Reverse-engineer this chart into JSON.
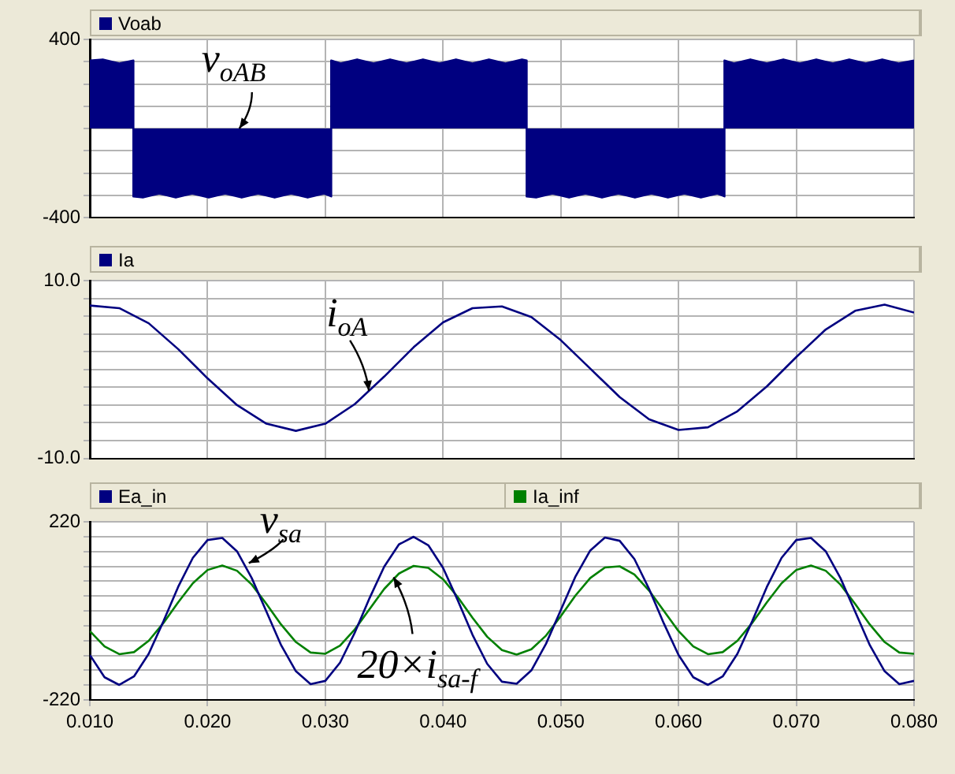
{
  "chart_data": [
    {
      "type": "area",
      "legend": "top left",
      "grid": true,
      "tick_labels": "y",
      "xlim": [
        0.01,
        0.08
      ],
      "ylim": [
        -400,
        400
      ],
      "xticks": [
        {
          "value": 0.01,
          "label": null
        },
        {
          "value": 0.02,
          "label": null
        },
        {
          "value": 0.03,
          "label": null
        },
        {
          "value": 0.04,
          "label": null
        },
        {
          "value": 0.05,
          "label": null
        },
        {
          "value": 0.06,
          "label": null
        },
        {
          "value": 0.07,
          "label": null
        },
        {
          "value": 0.08,
          "label": null
        }
      ],
      "yticks": [
        400,
        {
          "value": 300,
          "label": null
        },
        {
          "value": 200,
          "label": null
        },
        {
          "value": 100,
          "label": null
        },
        {
          "value": 0,
          "label": null
        },
        {
          "value": -100,
          "label": null
        },
        {
          "value": -200,
          "label": null
        },
        {
          "value": -300,
          "label": null
        },
        -400
      ],
      "annotations": [
        {
          "text": "v$_{oAB}$",
          "x": 0.0227,
          "y": 0
        }
      ],
      "series": [
        {
          "name": "Voab",
          "color": "#000080",
          "x": [
            0.01,
            0.0111,
            0.0125,
            0.0137,
            0.0137,
            0.0145,
            0.0159,
            0.0173,
            0.0187,
            0.0201,
            0.0215,
            0.0229,
            0.0243,
            0.0257,
            0.0271,
            0.0285,
            0.0299,
            0.0305,
            0.0305,
            0.0313,
            0.0327,
            0.0341,
            0.0355,
            0.0369,
            0.0383,
            0.0397,
            0.0411,
            0.0425,
            0.0439,
            0.0453,
            0.0467,
            0.0471,
            0.0471,
            0.0479,
            0.0493,
            0.0507,
            0.0521,
            0.0535,
            0.0549,
            0.0563,
            0.0577,
            0.0591,
            0.0605,
            0.0619,
            0.0633,
            0.0639,
            0.0639,
            0.0647,
            0.0661,
            0.0675,
            0.0689,
            0.0703,
            0.0717,
            0.0731,
            0.0745,
            0.0759,
            0.0773,
            0.0787,
            0.08
          ],
          "values": [
            305,
            310,
            292,
            305,
            -305,
            -310,
            -292,
            -310,
            -292,
            -310,
            -292,
            -310,
            -292,
            -310,
            -292,
            -310,
            -292,
            -305,
            305,
            292,
            310,
            292,
            310,
            292,
            310,
            292,
            310,
            292,
            310,
            292,
            310,
            305,
            -305,
            -310,
            -292,
            -310,
            -292,
            -310,
            -292,
            -310,
            -292,
            -310,
            -292,
            -310,
            -292,
            -305,
            305,
            292,
            310,
            292,
            310,
            292,
            310,
            292,
            310,
            292,
            310,
            292,
            305
          ]
        }
      ]
    },
    {
      "type": "line",
      "legend": "top left",
      "grid": true,
      "tick_labels": "y",
      "xlim": [
        0.01,
        0.08
      ],
      "ylim": [
        -10,
        10
      ],
      "xticks": [
        {
          "value": 0.01,
          "label": null
        },
        {
          "value": 0.02,
          "label": null
        },
        {
          "value": 0.03,
          "label": null
        },
        {
          "value": 0.04,
          "label": null
        },
        {
          "value": 0.05,
          "label": null
        },
        {
          "value": 0.06,
          "label": null
        },
        {
          "value": 0.07,
          "label": null
        },
        {
          "value": 0.08,
          "label": null
        }
      ],
      "yticks": [
        {
          "value": 10,
          "label": "10.0"
        },
        {
          "value": 8,
          "label": null
        },
        {
          "value": 6,
          "label": null
        },
        {
          "value": 4,
          "label": null
        },
        {
          "value": 2,
          "label": null
        },
        {
          "value": 0,
          "label": null
        },
        {
          "value": -2,
          "label": null
        },
        {
          "value": -4,
          "label": null
        },
        {
          "value": -6,
          "label": null
        },
        {
          "value": -8,
          "label": null
        },
        {
          "value": -10,
          "label": "-10.0"
        }
      ],
      "annotations": [
        {
          "text": "i$_{oA}$",
          "x": 0.0337,
          "y": -2.4
        }
      ],
      "x": [
        0.01,
        0.0125,
        0.015,
        0.0175,
        0.02,
        0.0225,
        0.025,
        0.0275,
        0.03,
        0.0325,
        0.035,
        0.0375,
        0.04,
        0.0425,
        0.045,
        0.0475,
        0.05,
        0.0525,
        0.055,
        0.0575,
        0.06,
        0.0625,
        0.065,
        0.0675,
        0.07,
        0.0725,
        0.075,
        0.0775,
        0.08
      ],
      "series": [
        {
          "name": "Ia",
          "color": "#000080",
          "values": [
            7.2,
            6.9,
            5.2,
            2.3,
            -1.0,
            -4.0,
            -6.1,
            -6.9,
            -6.1,
            -3.9,
            -0.8,
            2.5,
            5.3,
            6.9,
            7.1,
            5.9,
            3.3,
            0.1,
            -3.1,
            -5.6,
            -6.8,
            -6.5,
            -4.7,
            -1.9,
            1.4,
            4.5,
            6.6,
            7.3,
            6.4
          ]
        }
      ]
    },
    {
      "type": "line",
      "legend": "top left",
      "grid": true,
      "xlim": [
        0.01,
        0.08
      ],
      "ylim": [
        -220,
        220
      ],
      "xticks": [
        {
          "value": 0.01,
          "label": "0.010"
        },
        {
          "value": 0.02,
          "label": "0.020"
        },
        {
          "value": 0.03,
          "label": "0.030"
        },
        {
          "value": 0.04,
          "label": "0.040"
        },
        {
          "value": 0.05,
          "label": "0.050"
        },
        {
          "value": 0.06,
          "label": "0.060"
        },
        {
          "value": 0.07,
          "label": "0.070"
        },
        {
          "value": 0.08,
          "label": "0.080"
        }
      ],
      "yticks": [
        220,
        {
          "value": 183.3,
          "label": null
        },
        {
          "value": 146.7,
          "label": null
        },
        {
          "value": 110,
          "label": null
        },
        {
          "value": 73.3,
          "label": null
        },
        {
          "value": 36.7,
          "label": null
        },
        {
          "value": 0,
          "label": null
        },
        {
          "value": -36.7,
          "label": null
        },
        {
          "value": -73.3,
          "label": null
        },
        {
          "value": -110,
          "label": null
        },
        {
          "value": -146.7,
          "label": null
        },
        {
          "value": -183.3,
          "label": null
        },
        -220
      ],
      "annotations": [
        {
          "text": "v$_{sa}$",
          "x": 0.0235,
          "y": 118
        },
        {
          "text": "20×i$_{sa-f}$",
          "x": 0.0358,
          "y": 83
        }
      ],
      "x": [
        0.01,
        0.01125,
        0.0125,
        0.01375,
        0.015,
        0.01625,
        0.0175,
        0.01875,
        0.02,
        0.02125,
        0.0225,
        0.02375,
        0.025,
        0.02625,
        0.0275,
        0.02875,
        0.03,
        0.03125,
        0.0325,
        0.03375,
        0.035,
        0.03625,
        0.0375,
        0.03875,
        0.04,
        0.04125,
        0.0425,
        0.04375,
        0.045,
        0.04625,
        0.0475,
        0.04875,
        0.05,
        0.05125,
        0.0525,
        0.05375,
        0.055,
        0.05625,
        0.0575,
        0.05875,
        0.06,
        0.06125,
        0.0625,
        0.06375,
        0.065,
        0.06625,
        0.0675,
        0.06875,
        0.07,
        0.07125,
        0.0725,
        0.07375,
        0.075,
        0.07625,
        0.0775,
        0.07875,
        0.08
      ],
      "series": [
        {
          "name": "Ea_in",
          "color": "#000080",
          "values": [
            -109,
            -164,
            -183,
            -162,
            -106,
            -26,
            59,
            131,
            175,
            180,
            147,
            81,
            -2,
            -85,
            -149,
            -181,
            -173,
            -128,
            -54,
            31,
            109,
            164,
            183,
            162,
            106,
            26,
            -59,
            -131,
            -175,
            -180,
            -147,
            -81,
            2,
            85,
            149,
            181,
            173,
            128,
            54,
            -31,
            -109,
            -164,
            -183,
            -162,
            -106,
            -26,
            59,
            131,
            175,
            180,
            147,
            81,
            -2,
            -85,
            -149,
            -181,
            -173
          ]
        },
        {
          "name": "Ia_inf",
          "color": "#008000",
          "values": [
            -50,
            -88,
            -107,
            -102,
            -74,
            -30,
            21,
            68,
            101,
            112,
            99,
            65,
            17,
            -34,
            -77,
            -103,
            -106,
            -86,
            -46,
            4,
            54,
            92,
            111,
            106,
            78,
            34,
            -17,
            -64,
            -97,
            -108,
            -95,
            -61,
            -13,
            38,
            81,
            107,
            110,
            90,
            50,
            0,
            -50,
            -88,
            -107,
            -102,
            -74,
            -30,
            21,
            68,
            101,
            112,
            99,
            65,
            17,
            -34,
            -77,
            -103,
            -106
          ]
        }
      ]
    }
  ]
}
